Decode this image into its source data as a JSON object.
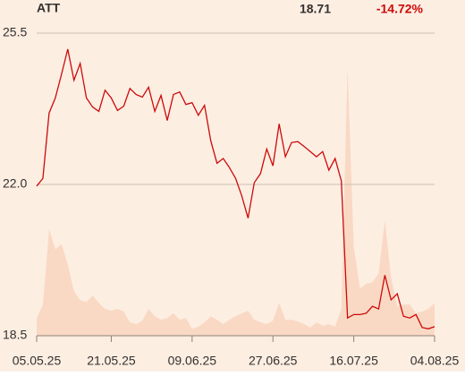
{
  "chart_data": {
    "type": "line",
    "title": "ATT",
    "last_price": 18.71,
    "change": {
      "value": -14.72,
      "label": "-14.72%"
    },
    "change_color": "#cc0a0a",
    "background": "#fdeee2",
    "grid": true,
    "categories": [
      "05.05.25",
      null,
      null,
      null,
      null,
      null,
      null,
      null,
      null,
      null,
      null,
      null,
      "21.05.25",
      null,
      null,
      null,
      null,
      null,
      null,
      null,
      null,
      null,
      null,
      null,
      null,
      "09.06.25",
      null,
      null,
      null,
      null,
      null,
      null,
      null,
      null,
      null,
      null,
      null,
      null,
      "27.06.25",
      null,
      null,
      null,
      null,
      null,
      null,
      null,
      null,
      null,
      null,
      null,
      null,
      "16.07.25",
      null,
      null,
      null,
      null,
      null,
      null,
      null,
      null,
      null,
      null,
      null,
      null,
      "04.08.25"
    ],
    "ylim": [
      18.5,
      25.5
    ],
    "yticks": [
      {
        "value": 18.5,
        "label": "18.5"
      },
      {
        "value": 22.0,
        "label": "22.0"
      },
      {
        "value": 25.5,
        "label": "25.5"
      }
    ],
    "series": [
      {
        "kind": "area",
        "color": "#f9d9c4",
        "values": [
          18.91,
          19.22,
          20.97,
          20.5,
          20.62,
          20.15,
          19.53,
          19.32,
          19.28,
          19.43,
          19.26,
          19.12,
          19.08,
          19.12,
          19.06,
          18.81,
          18.77,
          18.85,
          19.12,
          18.95,
          18.87,
          18.91,
          19.02,
          18.87,
          18.91,
          18.66,
          18.71,
          18.81,
          18.95,
          18.87,
          18.77,
          18.87,
          18.95,
          19.02,
          19.08,
          18.87,
          18.81,
          18.77,
          18.85,
          19.26,
          18.87,
          18.87,
          18.83,
          18.77,
          18.69,
          18.81,
          18.73,
          18.77,
          18.71,
          19.12,
          24.69,
          20.56,
          19.59,
          19.7,
          19.74,
          19.94,
          21.18,
          19.84,
          19.18,
          19.22,
          19.22,
          19.02,
          19.06,
          19.12,
          19.26
        ]
      },
      {
        "kind": "line",
        "color": "#cc0a0a",
        "values": [
          21.96,
          22.14,
          23.65,
          24.0,
          24.55,
          25.13,
          24.41,
          24.8,
          24.0,
          23.79,
          23.69,
          24.18,
          24.0,
          23.71,
          23.81,
          24.22,
          24.08,
          24.02,
          24.25,
          23.69,
          24.06,
          23.48,
          24.08,
          24.14,
          23.85,
          23.89,
          23.6,
          23.83,
          23.01,
          22.49,
          22.6,
          22.39,
          22.14,
          21.73,
          21.22,
          22.04,
          22.25,
          22.82,
          22.43,
          23.4,
          22.64,
          22.97,
          22.99,
          22.88,
          22.76,
          22.64,
          22.76,
          22.33,
          22.6,
          22.08,
          18.91,
          18.99,
          18.99,
          19.02,
          19.18,
          19.12,
          19.9,
          19.33,
          19.47,
          18.95,
          18.91,
          18.99,
          18.69,
          18.66,
          18.71
        ]
      }
    ]
  }
}
